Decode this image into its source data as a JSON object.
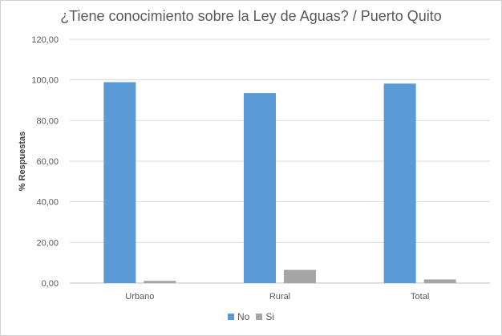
{
  "chart_data": {
    "type": "bar",
    "title": "¿Tiene conocimiento sobre la Ley de Aguas? / Puerto Quito",
    "xlabel": "",
    "ylabel": "% Respuestas",
    "ylim": [
      0,
      120
    ],
    "yticks": [
      "0,00",
      "20,00",
      "40,00",
      "60,00",
      "80,00",
      "100,00",
      "120,00"
    ],
    "categories": [
      "Urbano",
      "Rural",
      "Total"
    ],
    "series": [
      {
        "name": "No",
        "color": "#5b9bd5",
        "values": [
          98.9,
          93.5,
          98.2
        ]
      },
      {
        "name": "Si",
        "color": "#a5a5a5",
        "values": [
          1.1,
          6.5,
          1.8
        ]
      }
    ],
    "grid": true,
    "legend": "bottom"
  }
}
